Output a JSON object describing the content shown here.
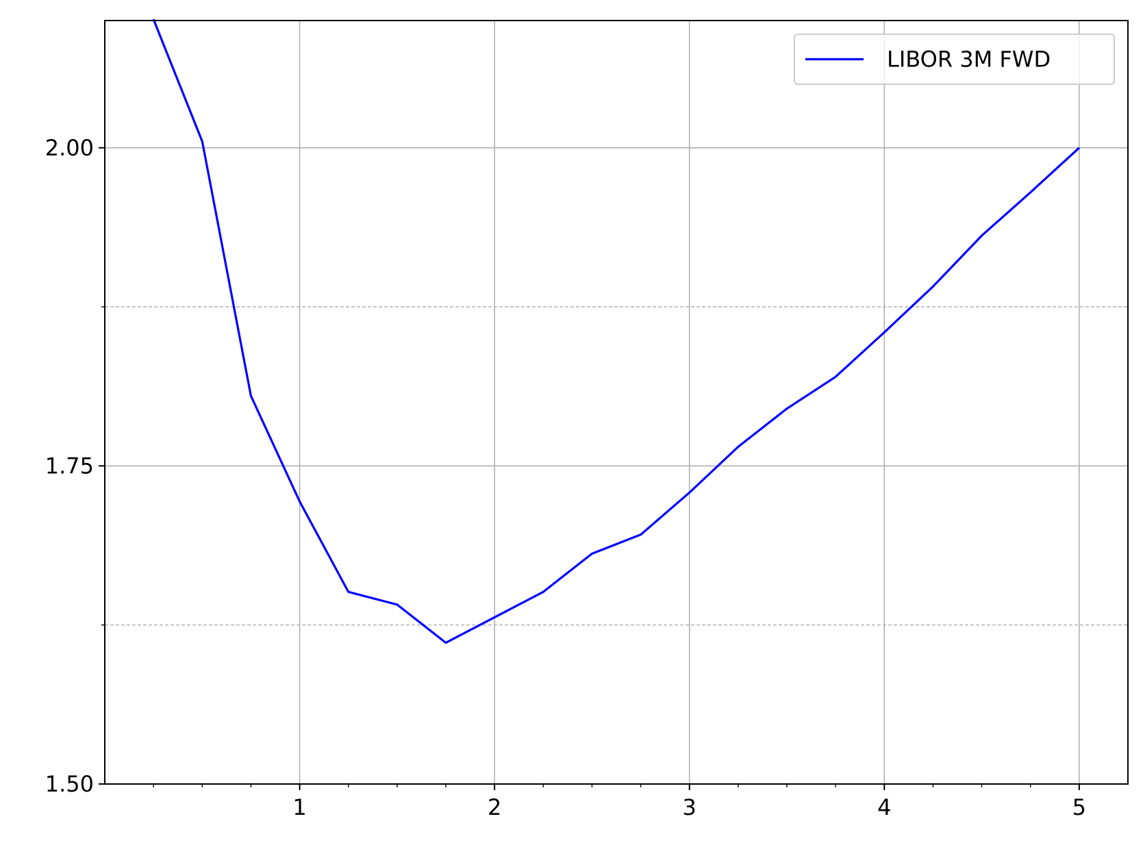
{
  "chart_data": {
    "type": "line",
    "title": "",
    "xlabel": "",
    "ylabel": "",
    "xlim": [
      0,
      5.25
    ],
    "ylim": [
      1.5,
      2.1
    ],
    "x_major_ticks": [
      1,
      2,
      3,
      4,
      5
    ],
    "x_minor_ticks": [
      0.25,
      0.5,
      0.75,
      1.25,
      1.5,
      1.75,
      2.25,
      2.5,
      2.75,
      3.25,
      3.5,
      3.75,
      4.25,
      4.5,
      4.75
    ],
    "y_major_ticks": [
      1.5,
      1.75,
      2.0
    ],
    "y_minor_ticks": [
      1.625,
      1.875
    ],
    "x_tick_labels": [
      "1",
      "2",
      "3",
      "4",
      "5"
    ],
    "y_tick_labels": [
      "1.50",
      "1.75",
      "2.00"
    ],
    "grid": true,
    "legend_position": "top-right",
    "colors": {
      "series": "#0000ff",
      "grid": "#b0b0b0",
      "axes": "#000000"
    },
    "series": [
      {
        "name": "LIBOR 3M FWD",
        "x": [
          0.25,
          0.5,
          0.75,
          1.0,
          1.25,
          1.5,
          1.75,
          2.0,
          2.25,
          2.5,
          2.75,
          3.0,
          3.25,
          3.5,
          3.75,
          4.0,
          4.25,
          4.5,
          4.75,
          5.0
        ],
        "y": [
          2.101,
          2.005,
          1.805,
          1.722,
          1.651,
          1.641,
          1.611,
          1.631,
          1.651,
          1.681,
          1.696,
          1.729,
          1.765,
          1.795,
          1.82,
          1.855,
          1.891,
          1.931,
          1.965,
          2.0
        ]
      }
    ]
  }
}
